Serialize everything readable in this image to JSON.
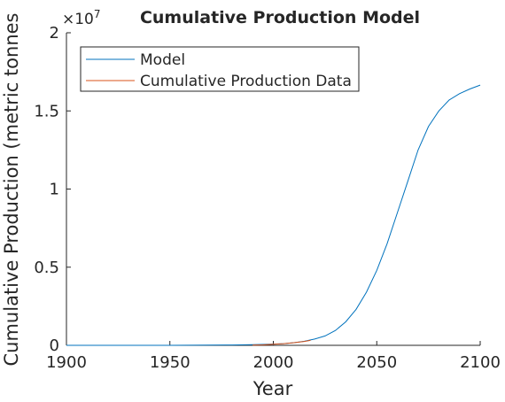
{
  "chart_data": {
    "type": "line",
    "title": "Cumulative Production Model",
    "xlabel": "Year",
    "ylabel": "Cumulative Production (metric tonnes",
    "y_exponent_label": "×10",
    "y_exponent_power": "7",
    "xlim": [
      1900,
      2100
    ],
    "ylim": [
      0,
      20000000
    ],
    "x_ticks": [
      1900,
      1950,
      2000,
      2050,
      2100
    ],
    "x_tick_labels": [
      "1900",
      "1950",
      "2000",
      "2050",
      "2100"
    ],
    "y_ticks": [
      0,
      5000000,
      10000000,
      15000000,
      20000000
    ],
    "y_tick_labels": [
      "0",
      "0.5",
      "1",
      "1.5",
      "2"
    ],
    "grid": false,
    "legend_position": "top-left",
    "series": [
      {
        "name": "Model",
        "color": "#0072bd",
        "x": [
          1900,
          1950,
          1980,
          1990,
          2000,
          2005,
          2010,
          2015,
          2020,
          2025,
          2030,
          2035,
          2040,
          2045,
          2050,
          2055,
          2060,
          2065,
          2070,
          2075,
          2080,
          2085,
          2090,
          2095,
          2100
        ],
        "y": [
          0,
          0,
          20000,
          40000,
          80000,
          110000,
          170000,
          260000,
          400000,
          600000,
          950000,
          1500000,
          2300000,
          3400000,
          4800000,
          6500000,
          8500000,
          10500000,
          12500000,
          14000000,
          15000000,
          15700000,
          16100000,
          16400000,
          16650000
        ]
      },
      {
        "name": "Cumulative Production Data",
        "color": "#d95319",
        "x": [
          1990,
          1995,
          2000,
          2005,
          2010,
          2015,
          2018
        ],
        "y": [
          10000,
          30000,
          70000,
          110000,
          170000,
          250000,
          320000
        ]
      }
    ]
  }
}
